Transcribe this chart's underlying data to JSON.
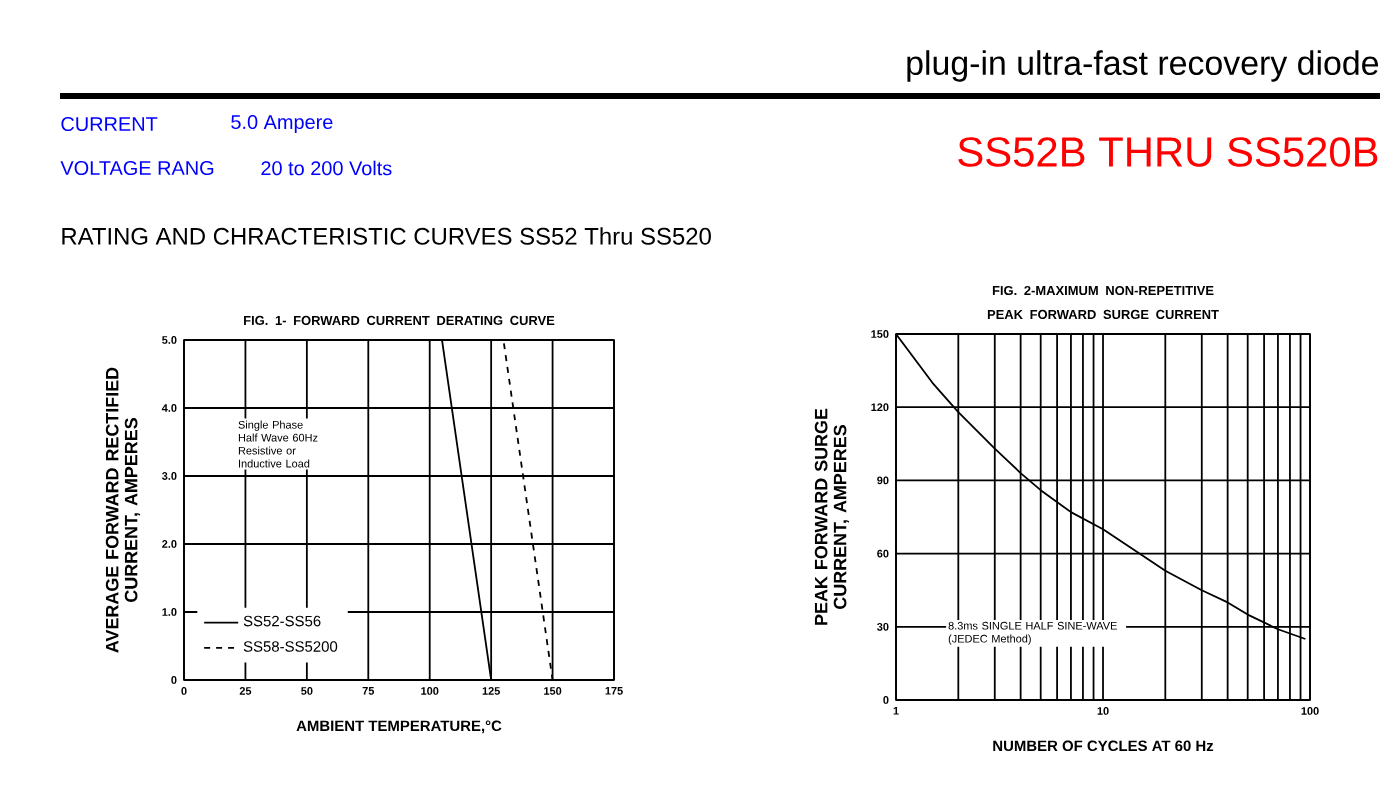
{
  "chart_data": [
    {
      "type": "other",
      "title": "plug-in ultra-fast recovery diode",
      "annotations": [
        "CURRENT",
        "5.0  Ampere",
        "VOLTAGE RANG",
        "20  to  200  Volts",
        "SS52B THRU SS520B",
        "RATING AND CHRACTERISTIC CURVES SS52 Thru SS520"
      ]
    },
    {
      "type": "line",
      "title": "FIG. 1- FORWARD CURRENT DERATING CURVE",
      "xlabel": "AMBIENT TEMPERATURE,°C",
      "ylabel": "AVERAGE FORWARD RECTIFIED CURRENT, AMPERES",
      "xlim": [
        0,
        175
      ],
      "xticks": [
        0,
        25,
        50,
        75,
        100,
        125,
        150,
        175
      ],
      "ylim": [
        0,
        5
      ],
      "yticks": [
        0,
        {
          "value": 1,
          "label": "1.0"
        },
        {
          "value": 2,
          "label": "2.0"
        },
        {
          "value": 3,
          "label": "3.0"
        },
        {
          "value": 4,
          "label": "4.0"
        },
        {
          "value": 5,
          "label": "5.0"
        }
      ],
      "grid": true,
      "legend": "bottom left",
      "marker": "none",
      "annotations": [
        "Single Phase Half Wave 60Hz Resistive or Inductive Load"
      ],
      "series": [
        {
          "name": "SS58-SS5200",
          "color": "#000000",
          "line_style": "dashed",
          "x": [
            0,
            130,
            150
          ],
          "values": [
            5,
            5,
            0
          ]
        },
        {
          "name": "SS52-SS56",
          "color": "#000000",
          "line_style": "solid",
          "x": [
            0,
            105,
            125
          ],
          "values": [
            5,
            5,
            0
          ]
        }
      ]
    },
    {
      "type": "line",
      "title": "FIG. 2-MAXIMUM NON-REPETITIVE PEAK FORWARD SURGE CURRENT",
      "xlabel": "NUMBER OF CYCLES AT 60 Hz",
      "ylabel": "PEAK  FORWARD SURGE CURRENT, AMPERES",
      "log": "x",
      "xlim": [
        1,
        100
      ],
      "xticks": [
        1,
        10,
        100
      ],
      "ylim": [
        0,
        150
      ],
      "yticks": [
        0,
        30,
        60,
        90,
        120,
        150
      ],
      "grid": true,
      "marker": "none",
      "annotations": [
        "8.3ms SINGLE HALF SINE-WAVE (JEDEC Method)"
      ],
      "series": [
        {
          "color": "#000000",
          "line_style": "solid",
          "x": [
            1,
            1.5,
            2,
            3,
            4,
            5,
            7,
            10,
            15,
            20,
            30,
            40,
            50,
            70,
            95
          ],
          "values": [
            150,
            130,
            118,
            103,
            93,
            86,
            77,
            70,
            60,
            53,
            45,
            40,
            35,
            29,
            25
          ]
        }
      ]
    }
  ]
}
